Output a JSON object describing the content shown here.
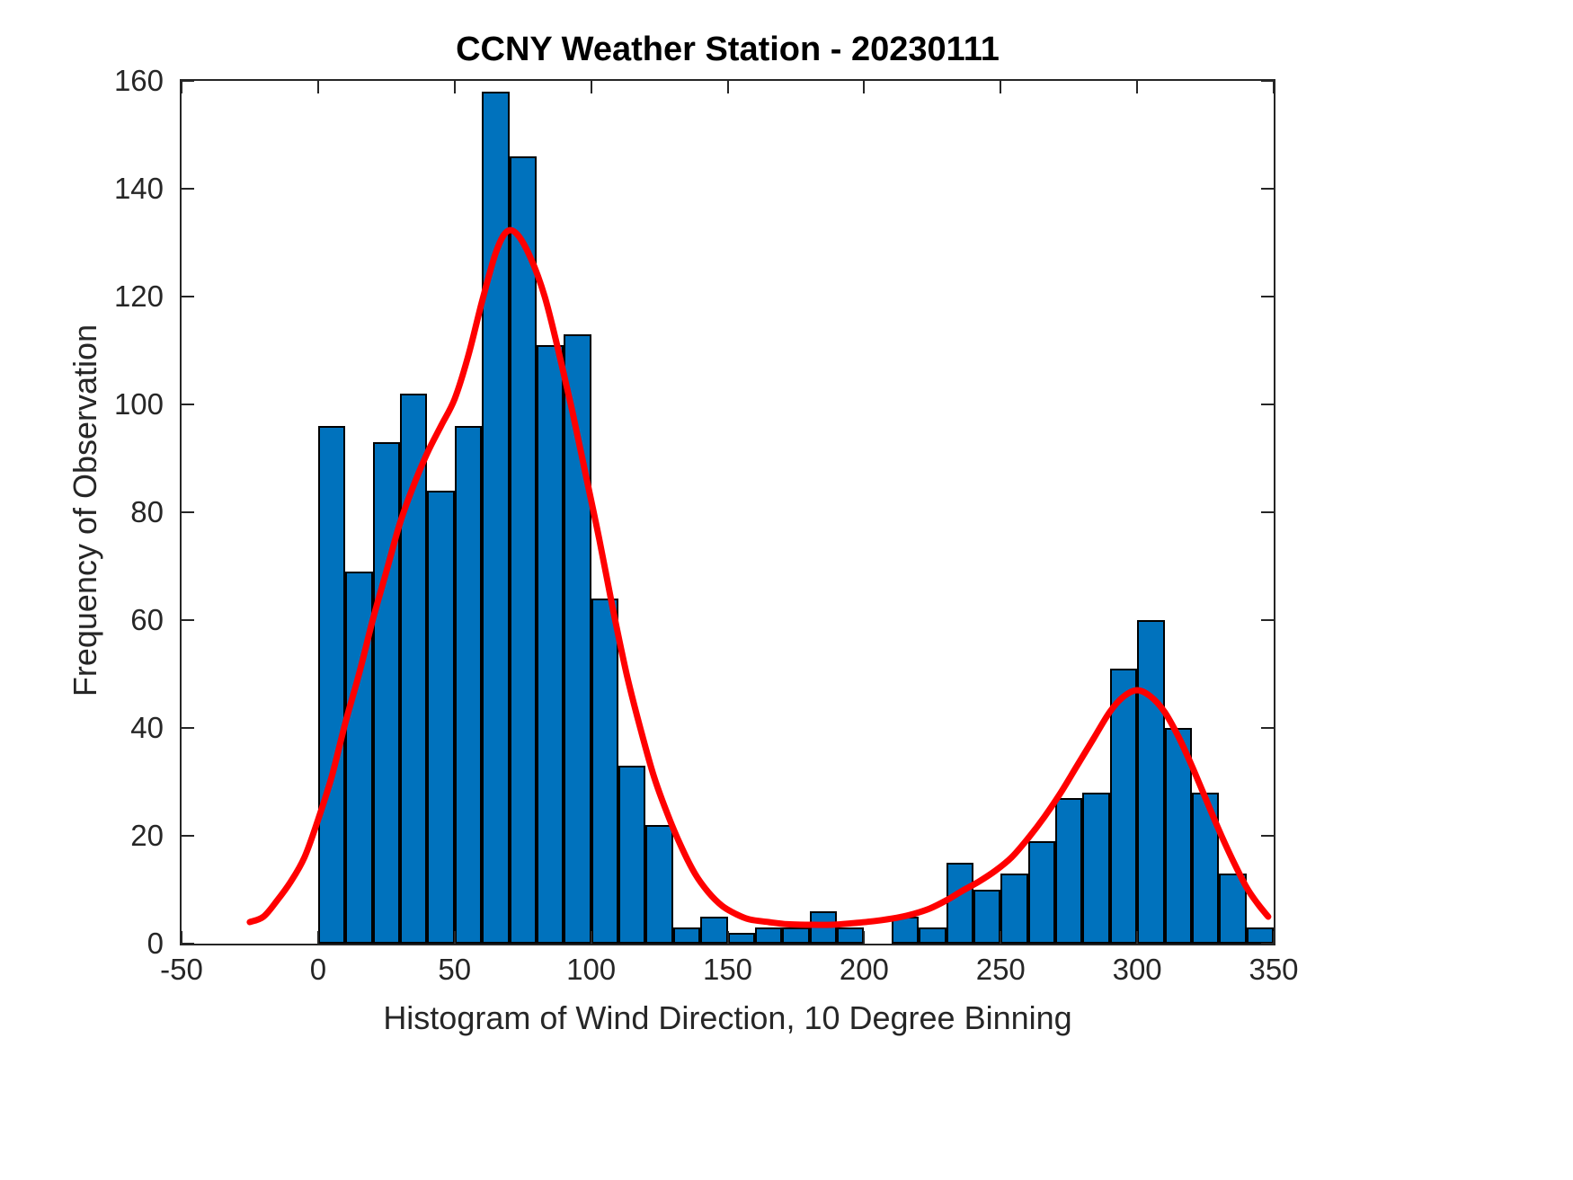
{
  "chart_data": {
    "type": "bar",
    "subtype": "histogram-with-density-curve",
    "title": "CCNY Weather Station - 20230111",
    "xlabel": "Histogram of Wind Direction, 10 Degree Binning",
    "ylabel": "Frequency of Observation",
    "xlim": [
      -50,
      350
    ],
    "ylim": [
      0,
      160
    ],
    "xticks": [
      -50,
      0,
      50,
      100,
      150,
      200,
      250,
      300,
      350
    ],
    "yticks": [
      0,
      20,
      40,
      60,
      80,
      100,
      120,
      140,
      160
    ],
    "grid": false,
    "legend": null,
    "axis_color": "#262626",
    "bin_width": 10,
    "bins_left": [
      0,
      10,
      20,
      30,
      40,
      50,
      60,
      70,
      80,
      90,
      100,
      110,
      120,
      130,
      140,
      150,
      160,
      170,
      180,
      190,
      200,
      210,
      220,
      230,
      240,
      250,
      260,
      270,
      280,
      290,
      300,
      310,
      320,
      330,
      340
    ],
    "counts": [
      96,
      69,
      93,
      102,
      84,
      96,
      158,
      146,
      111,
      113,
      64,
      33,
      22,
      3,
      5,
      2,
      3,
      3,
      6,
      3,
      0,
      5,
      3,
      15,
      10,
      13,
      19,
      27,
      28,
      51,
      60,
      40,
      28,
      13,
      3
    ],
    "bar_face_color": "#0072BD",
    "bar_edge_color": "#000000",
    "curve": {
      "name": "kernel-density-fit",
      "color": "#FF0000",
      "width": 7,
      "points": [
        [
          -25,
          4
        ],
        [
          -20,
          5
        ],
        [
          -15,
          8
        ],
        [
          -10,
          11.5
        ],
        [
          -5,
          16
        ],
        [
          0,
          23
        ],
        [
          5,
          31
        ],
        [
          10,
          41
        ],
        [
          15,
          50
        ],
        [
          20,
          60
        ],
        [
          25,
          69
        ],
        [
          30,
          78
        ],
        [
          35,
          85
        ],
        [
          40,
          91
        ],
        [
          45,
          96
        ],
        [
          50,
          101
        ],
        [
          55,
          109
        ],
        [
          60,
          119
        ],
        [
          65,
          128
        ],
        [
          69,
          132
        ],
        [
          73,
          131.5
        ],
        [
          78,
          127
        ],
        [
          83,
          120
        ],
        [
          88,
          110
        ],
        [
          93,
          99
        ],
        [
          98,
          87
        ],
        [
          103,
          75
        ],
        [
          108,
          62
        ],
        [
          113,
          50
        ],
        [
          118,
          40
        ],
        [
          123,
          31
        ],
        [
          128,
          24
        ],
        [
          133,
          18
        ],
        [
          138,
          13
        ],
        [
          143,
          9.5
        ],
        [
          148,
          7
        ],
        [
          153,
          5.5
        ],
        [
          158,
          4.5
        ],
        [
          165,
          4
        ],
        [
          172,
          3.6
        ],
        [
          180,
          3.5
        ],
        [
          188,
          3.5
        ],
        [
          196,
          3.8
        ],
        [
          204,
          4.2
        ],
        [
          212,
          4.8
        ],
        [
          218,
          5.5
        ],
        [
          224,
          6.5
        ],
        [
          230,
          8
        ],
        [
          236,
          9.8
        ],
        [
          242,
          11.5
        ],
        [
          248,
          13.5
        ],
        [
          254,
          16
        ],
        [
          260,
          19.5
        ],
        [
          266,
          23.5
        ],
        [
          272,
          28
        ],
        [
          278,
          33
        ],
        [
          284,
          38
        ],
        [
          290,
          43
        ],
        [
          295,
          45.8
        ],
        [
          300,
          47
        ],
        [
          305,
          45.8
        ],
        [
          310,
          43
        ],
        [
          315,
          38.5
        ],
        [
          320,
          33
        ],
        [
          325,
          27
        ],
        [
          330,
          21
        ],
        [
          335,
          15.5
        ],
        [
          340,
          10.5
        ],
        [
          344,
          7.5
        ],
        [
          348,
          5
        ]
      ]
    }
  }
}
